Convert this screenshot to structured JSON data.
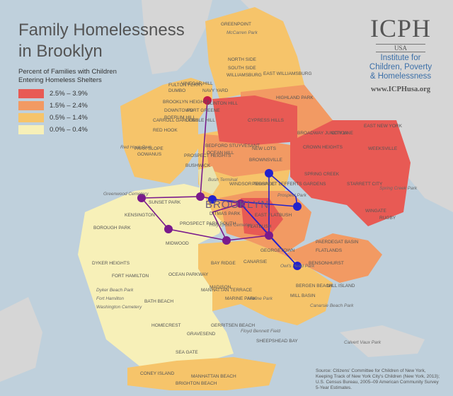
{
  "title": "Family Homelessness in Brooklyn",
  "legend": {
    "heading": "Percent of Families with Children Entering Homeless Shelters",
    "items": [
      {
        "label": "2.5% – 3.9%",
        "color": "#e85a54"
      },
      {
        "label": "1.5% – 2.4%",
        "color": "#f29a63"
      },
      {
        "label": "0.5% – 1.4%",
        "color": "#f6c46a"
      },
      {
        "label": "0.0% – 0.4%",
        "color": "#f7f0b8"
      }
    ]
  },
  "logo": {
    "mark": "ICPH",
    "country": "USA",
    "lines": [
      "Institute for",
      "Children, Poverty",
      "& Homelessness"
    ],
    "url": "www.ICPHusa.org"
  },
  "borough_label": "BROOKLYN",
  "neighborhoods": [
    "GREENPOINT",
    "McCarren Park",
    "NORTH SIDE",
    "SOUTH SIDE",
    "WILLIAMSBURG",
    "EAST WILLIAMSBURG",
    "FULTON FERRY",
    "DUMBO",
    "VINEGAR HILL",
    "NAVY YARD",
    "CLINTON HILL",
    "BROOKLYN HEIGHTS",
    "DOWNTOWN",
    "BOERUM HILL",
    "FORT GREENE",
    "COBBLE HILL",
    "CARROLL GARDENS",
    "RED HOOK",
    "Red Hook Park",
    "GOWANUS",
    "PARK SLOPE",
    "PROSPECT HEIGHTS",
    "BUSHWICK",
    "BEDFORD STUYVESANT",
    "OCEAN HILL",
    "HIGHLAND PARK",
    "CYPRESS HILLS",
    "BROADWAY JUNCTION",
    "CITY LINE",
    "EAST NEW YORK",
    "CROWN HEIGHTS",
    "WEEKSVILLE",
    "BROWNSVILLE",
    "NEW LOTS",
    "SPRING CREEK",
    "STARRETT CITY",
    "Spring Creek Park",
    "WINGATE",
    "RUGBY",
    "PROSPECT LEFFERTS GARDENS",
    "Prospect Park",
    "WINDSOR TERRACE",
    "Bush Terminal",
    "Greenwood Cemetery",
    "SUNSET PARK",
    "KENSINGTON",
    "PROSPECT PARK SOUTH",
    "DITMAS PARK",
    "Holy Cross Cemetery",
    "EAST FLATBUSH",
    "FLATBUSH",
    "CANARSIE",
    "PAERDEGAT BASIN",
    "FLATLANDS",
    "GEORGETOWN",
    "Owl's Head Park",
    "BOROUGH PARK",
    "MIDWOOD",
    "BAY RIDGE",
    "DYKER HEIGHTS",
    "FORT HAMILTON",
    "Dyker Beach Park",
    "Fort Hamilton",
    "Washington Cemetery",
    "OCEAN PARKWAY",
    "MANHATTAN TERRACE",
    "MADISON",
    "MARINE PARK",
    "Marine Park",
    "MILL BASIN",
    "BERGEN BEACH",
    "MILL ISLAND",
    "Canarsie Beach Park",
    "BENSONHURST",
    "BATH BEACH",
    "HOMECREST",
    "GRAVESEND",
    "GERRITSEN BEACH",
    "SHEEPSHEAD BAY",
    "Floyd Bennett Field",
    "Calvert Vaux Park",
    "SEA GATE",
    "CONEY ISLAND",
    "BRIGHTON BEACH",
    "MANHATTAN BEACH"
  ],
  "source_text": "Source: Citizens' Committee for Children of New York, Keeping Track of New York City's Children (New York, 2013); U.S. Census Bureau, 2005–09 American Community Survey 5-Year Estimates.",
  "colors": {
    "water": "#bfd0dc",
    "land": "#d9d9d9",
    "route_purple": "#7a1a8c",
    "route_blue": "#2222cc",
    "marker_red": "#c2184b"
  }
}
